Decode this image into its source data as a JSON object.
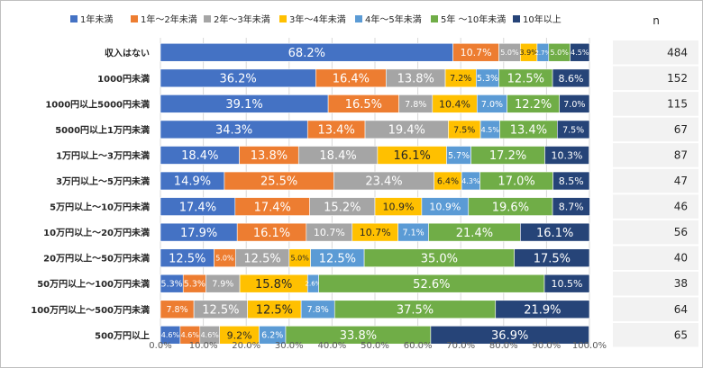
{
  "chart_data": {
    "type": "bar",
    "orientation": "horizontal",
    "stacked": true,
    "categories": [
      "収入はない",
      "1000円未満",
      "1000円以上5000円未満",
      "5000円以上1万円未満",
      "1万円以上～3万円未満",
      "3万円以上～5万円未満",
      "5万円以上～10万円未満",
      "10万円以上～20万円未満",
      "20万円以上～50万円未満",
      "50万円以上～100万円未満",
      "100万円以上～500万円未満",
      "500万円以上"
    ],
    "series": [
      {
        "name": "1年未満",
        "color": "#4472C4",
        "label_color": "#ffffff",
        "values": [
          68.2,
          36.2,
          39.1,
          34.3,
          18.4,
          14.9,
          17.4,
          17.9,
          12.5,
          5.3,
          0,
          4.6
        ],
        "labels": [
          "68.2%",
          "36.2%",
          "39.1%",
          "34.3%",
          "18.4%",
          "14.9%",
          "17.4%",
          "17.9%",
          "12.5%",
          "5.3%",
          "",
          "4.6%"
        ]
      },
      {
        "name": "1年～2年未満",
        "color": "#ED7D31",
        "label_color": "#ffffff",
        "values": [
          10.7,
          16.4,
          16.5,
          13.4,
          13.8,
          25.5,
          17.4,
          16.1,
          5.0,
          5.3,
          7.8,
          4.6
        ],
        "labels": [
          "10.7%",
          "16.4%",
          "16.5%",
          "13.4%",
          "13.8%",
          "25.5%",
          "17.4%",
          "16.1%",
          "5.0%",
          "5.3%",
          "7.8%",
          "4.6%"
        ]
      },
      {
        "name": "2年～3年未満",
        "color": "#A5A5A5",
        "label_color": "#ffffff",
        "values": [
          5.0,
          13.8,
          7.8,
          19.4,
          18.4,
          23.4,
          15.2,
          10.7,
          12.5,
          7.9,
          12.5,
          4.6
        ],
        "labels": [
          "5.0%",
          "13.8%",
          "7.8%",
          "19.4%",
          "18.4%",
          "23.4%",
          "15.2%",
          "10.7%",
          "12.5%",
          "7.9%",
          "12.5%",
          "4.6%"
        ]
      },
      {
        "name": "3年～4年未満",
        "color": "#FFC000",
        "label_color": "#262626",
        "values": [
          3.9,
          7.2,
          10.4,
          7.5,
          16.1,
          6.4,
          10.9,
          10.7,
          5.0,
          15.8,
          12.5,
          9.2
        ],
        "labels": [
          "3.9%",
          "7.2%",
          "10.4%",
          "7.5%",
          "16.1%",
          "6.4%",
          "10.9%",
          "10.7%",
          "5.0%",
          "15.8%",
          "12.5%",
          "9.2%"
        ]
      },
      {
        "name": "4年～5年未満",
        "color": "#5B9BD5",
        "label_color": "#ffffff",
        "values": [
          2.7,
          5.3,
          7.0,
          4.5,
          5.7,
          4.3,
          10.9,
          7.1,
          12.5,
          2.6,
          7.8,
          6.2
        ],
        "labels": [
          "2.7%",
          "5.3%",
          "7.0%",
          "4.5%",
          "5.7%",
          "4.3%",
          "10.9%",
          "7.1%",
          "12.5%",
          "2.6%",
          "7.8%",
          "6.2%"
        ]
      },
      {
        "name": "5年 ～10年未満",
        "color": "#70AD47",
        "label_color": "#ffffff",
        "values": [
          5.0,
          12.5,
          12.2,
          13.4,
          17.2,
          17.0,
          19.6,
          21.4,
          35.0,
          52.6,
          37.5,
          33.8
        ],
        "labels": [
          "5.0%",
          "12.5%",
          "12.2%",
          "13.4%",
          "17.2%",
          "17.0%",
          "19.6%",
          "21.4%",
          "35.0%",
          "52.6%",
          "37.5%",
          "33.8%"
        ]
      },
      {
        "name": "10年以上",
        "color": "#264478",
        "label_color": "#ffffff",
        "values": [
          4.5,
          8.6,
          7.0,
          7.5,
          10.3,
          8.5,
          8.7,
          16.1,
          17.5,
          10.5,
          21.9,
          36.9
        ],
        "labels": [
          "4.5%",
          "8.6%",
          "7.0%",
          "7.5%",
          "10.3%",
          "8.5%",
          "8.7%",
          "16.1%",
          "17.5%",
          "10.5%",
          "21.9%",
          "36.9%"
        ]
      }
    ],
    "xlim": [
      0,
      100
    ],
    "x_ticks": [
      "0.0%",
      "10.0%",
      "20.0%",
      "30.0%",
      "40.0%",
      "50.0%",
      "60.0%",
      "70.0%",
      "80.0%",
      "90.0%",
      "100.0%"
    ],
    "grid": true,
    "legend_position": "top",
    "n_header": "n",
    "n_values": [
      "484",
      "152",
      "115",
      "67",
      "87",
      "47",
      "46",
      "56",
      "40",
      "38",
      "64",
      "65"
    ]
  }
}
